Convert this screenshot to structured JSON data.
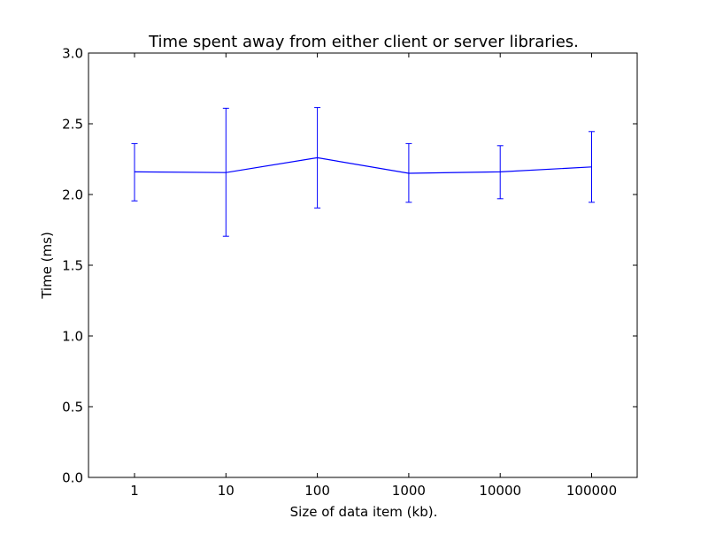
{
  "chart_data": {
    "type": "line",
    "title": "Time spent away from either client or server libraries.",
    "xlabel": "Size of data item (kb).",
    "ylabel": "Time (ms)",
    "categories": [
      "1",
      "10",
      "100",
      "1000",
      "10000",
      "100000"
    ],
    "series": [
      {
        "values": [
          2.16,
          2.155,
          2.26,
          2.15,
          2.16,
          2.195
        ],
        "error_low": [
          1.955,
          1.705,
          1.905,
          1.945,
          1.97,
          1.945
        ],
        "error_high": [
          2.36,
          2.61,
          2.615,
          2.36,
          2.345,
          2.445
        ],
        "color": "#0000ff"
      }
    ],
    "ylim": [
      0.0,
      3.0
    ],
    "yticks": [
      "0.0",
      "0.5",
      "1.0",
      "1.5",
      "2.0",
      "2.5",
      "3.0"
    ],
    "grid": false
  }
}
